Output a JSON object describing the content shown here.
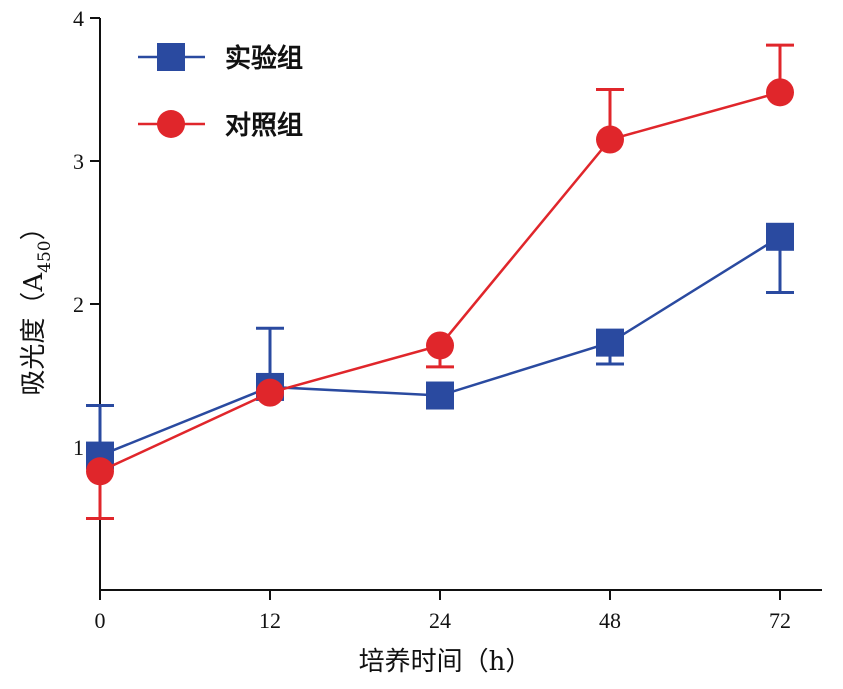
{
  "chart_data": {
    "type": "line",
    "title": "",
    "xlabel": "培养时间（h）",
    "ylabel": "吸光度（A450）",
    "ylabel_main": "吸光度（A",
    "ylabel_sub": "450",
    "ylabel_end": "）",
    "categories": [
      "0",
      "12",
      "24",
      "48",
      "72"
    ],
    "y_ticks": [
      "1",
      "2",
      "3",
      "4"
    ],
    "ylim": [
      0,
      4
    ],
    "grid": false,
    "legend_position": "top-left",
    "series": [
      {
        "name": "实验组",
        "color": "#2a4aa0",
        "marker": "square",
        "values": [
          0.94,
          1.42,
          1.36,
          1.73,
          2.47
        ],
        "error_upper": [
          1.29,
          1.83,
          null,
          null,
          null
        ],
        "error_lower": [
          null,
          null,
          null,
          1.58,
          2.08
        ]
      },
      {
        "name": "对照组",
        "color": "#e0262b",
        "marker": "circle",
        "values": [
          0.83,
          1.38,
          1.71,
          3.15,
          3.48
        ],
        "error_upper": [
          null,
          null,
          null,
          3.5,
          3.81
        ],
        "error_lower": [
          0.5,
          null,
          1.56,
          null,
          null
        ]
      }
    ]
  }
}
